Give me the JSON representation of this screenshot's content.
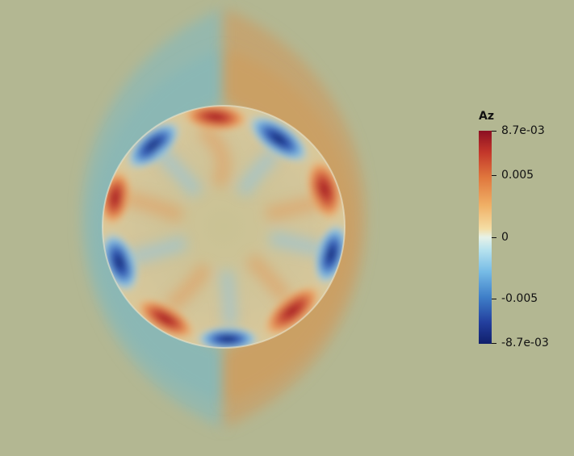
{
  "colorbar": {
    "title": "Az",
    "ticks": [
      {
        "label": "8.7e-03",
        "value": 0.0087
      },
      {
        "label": "0.005",
        "value": 0.005
      },
      {
        "label": "0",
        "value": 0
      },
      {
        "label": "-0.005",
        "value": -0.005
      },
      {
        "label": "-8.7e-03",
        "value": -0.0087
      }
    ],
    "range": [
      -0.0087,
      0.0087
    ]
  },
  "colors": {
    "background": "#b3b792",
    "positive_far": "#c89a5e",
    "negative_far": "#8ab7b4",
    "max": "#8c0f22",
    "min": "#101f6b",
    "zero": "#e6f2e8"
  }
}
